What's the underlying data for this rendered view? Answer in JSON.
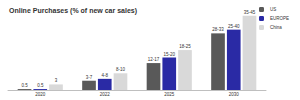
{
  "chart_data": {
    "type": "bar",
    "title": "Online Purchases (% of new car sales)",
    "categories": [
      "2020",
      "2022",
      "2025",
      "2030"
    ],
    "series": [
      {
        "name": "US",
        "color": "#595959",
        "values": [
          0.5,
          5,
          14.5,
          30.5
        ],
        "value_labels": [
          "0.5",
          "3-7",
          "12-17",
          "28-33"
        ]
      },
      {
        "name": "EUROPE",
        "color": "#2a2aa5",
        "values": [
          0.5,
          6,
          17.5,
          32.5
        ],
        "value_labels": [
          "0.5",
          "4-8",
          "15-20",
          "25-40"
        ]
      },
      {
        "name": "China",
        "color": "#d9d9d9",
        "values": [
          3,
          9,
          21.5,
          40
        ],
        "value_labels": [
          "3",
          "8-10",
          "18-25",
          "35-45"
        ]
      }
    ],
    "ylim": [
      0,
      42
    ],
    "data_labels": true,
    "legend": "upper right",
    "grid": false,
    "tick_labels": "x"
  }
}
